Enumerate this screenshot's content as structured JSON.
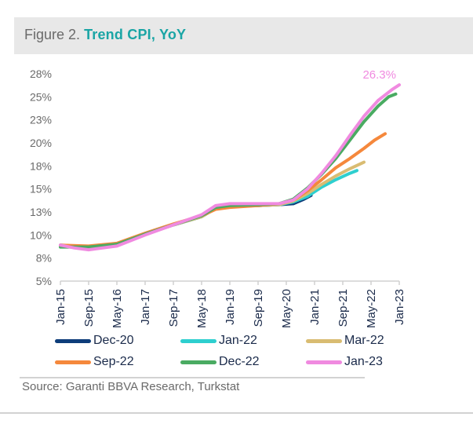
{
  "figure": {
    "prefix": "Figure 2.",
    "title": "Trend CPI, YoY",
    "source": "Source:   Garanti BBVA Research, Turkstat"
  },
  "chart_data": {
    "type": "line",
    "title": "Trend CPI, YoY",
    "xlabel": "",
    "ylabel": "",
    "x_tick_labels": [
      "Jan-15",
      "Sep-15",
      "May-16",
      "Jan-17",
      "Sep-17",
      "May-18",
      "Jan-19",
      "Sep-19",
      "May-20",
      "Jan-21",
      "Sep-21",
      "May-22",
      "Jan-23"
    ],
    "y_tick_labels": [
      "5%",
      "8%",
      "10%",
      "13%",
      "15%",
      "18%",
      "20%",
      "23%",
      "25%",
      "28%"
    ],
    "ylim": [
      5.0,
      27.5
    ],
    "xlim_months": [
      0,
      96
    ],
    "annotation": {
      "text": "26.3%",
      "series": "Jan-23",
      "color": "#f08ae0"
    },
    "legend_position": "bottom",
    "series": [
      {
        "name": "Dec-20",
        "color": "#0e3d7a",
        "end_month": 71,
        "points": [
          [
            0,
            8.9
          ],
          [
            8,
            8.7
          ],
          [
            16,
            9.0
          ],
          [
            24,
            10.1
          ],
          [
            32,
            11.1
          ],
          [
            40,
            12.0
          ],
          [
            44,
            12.9
          ],
          [
            48,
            13.1
          ],
          [
            56,
            13.2
          ],
          [
            62,
            13.3
          ],
          [
            66,
            13.4
          ],
          [
            69,
            13.9
          ],
          [
            71,
            14.3
          ]
        ]
      },
      {
        "name": "Jan-22",
        "color": "#2ecfcf",
        "end_month": 84,
        "points": [
          [
            0,
            8.9
          ],
          [
            8,
            8.7
          ],
          [
            16,
            9.0
          ],
          [
            24,
            10.1
          ],
          [
            32,
            11.1
          ],
          [
            40,
            12.0
          ],
          [
            44,
            12.9
          ],
          [
            48,
            13.1
          ],
          [
            56,
            13.2
          ],
          [
            62,
            13.3
          ],
          [
            66,
            13.6
          ],
          [
            70,
            14.2
          ],
          [
            74,
            15.2
          ],
          [
            78,
            16.0
          ],
          [
            82,
            16.7
          ],
          [
            84,
            17.0
          ]
        ]
      },
      {
        "name": "Mar-22",
        "color": "#d9bc72",
        "end_month": 86,
        "points": [
          [
            0,
            8.9
          ],
          [
            8,
            8.7
          ],
          [
            16,
            9.0
          ],
          [
            24,
            10.1
          ],
          [
            32,
            11.1
          ],
          [
            40,
            12.0
          ],
          [
            44,
            12.9
          ],
          [
            48,
            13.1
          ],
          [
            56,
            13.2
          ],
          [
            62,
            13.3
          ],
          [
            66,
            13.7
          ],
          [
            70,
            14.5
          ],
          [
            74,
            15.5
          ],
          [
            78,
            16.4
          ],
          [
            82,
            17.2
          ],
          [
            86,
            17.9
          ]
        ]
      },
      {
        "name": "Sep-22",
        "color": "#f5883c",
        "end_month": 92,
        "points": [
          [
            0,
            8.9
          ],
          [
            8,
            8.8
          ],
          [
            16,
            9.1
          ],
          [
            24,
            10.2
          ],
          [
            32,
            11.2
          ],
          [
            40,
            12.1
          ],
          [
            44,
            12.8
          ],
          [
            48,
            13.0
          ],
          [
            56,
            13.2
          ],
          [
            62,
            13.4
          ],
          [
            66,
            13.8
          ],
          [
            70,
            14.8
          ],
          [
            74,
            16.0
          ],
          [
            78,
            17.3
          ],
          [
            82,
            18.3
          ],
          [
            86,
            19.4
          ],
          [
            89,
            20.3
          ],
          [
            92,
            21.0
          ]
        ]
      },
      {
        "name": "Dec-22",
        "color": "#4aab62",
        "end_month": 95,
        "points": [
          [
            0,
            8.7
          ],
          [
            8,
            8.7
          ],
          [
            16,
            9.0
          ],
          [
            24,
            10.1
          ],
          [
            32,
            11.1
          ],
          [
            40,
            12.1
          ],
          [
            44,
            13.0
          ],
          [
            48,
            13.2
          ],
          [
            56,
            13.3
          ],
          [
            62,
            13.4
          ],
          [
            66,
            13.9
          ],
          [
            70,
            15.1
          ],
          [
            74,
            16.6
          ],
          [
            78,
            18.3
          ],
          [
            82,
            20.3
          ],
          [
            86,
            22.3
          ],
          [
            90,
            24.0
          ],
          [
            93,
            25.0
          ],
          [
            95,
            25.3
          ]
        ]
      },
      {
        "name": "Jan-23",
        "color": "#f08ae0",
        "end_month": 96,
        "points": [
          [
            0,
            8.9
          ],
          [
            4,
            8.6
          ],
          [
            8,
            8.4
          ],
          [
            16,
            8.8
          ],
          [
            24,
            10.0
          ],
          [
            32,
            11.1
          ],
          [
            40,
            12.2
          ],
          [
            44,
            13.2
          ],
          [
            48,
            13.4
          ],
          [
            56,
            13.4
          ],
          [
            62,
            13.4
          ],
          [
            66,
            13.8
          ],
          [
            70,
            15.0
          ],
          [
            74,
            16.7
          ],
          [
            78,
            18.6
          ],
          [
            82,
            20.8
          ],
          [
            86,
            22.9
          ],
          [
            90,
            24.6
          ],
          [
            94,
            25.8
          ],
          [
            96,
            26.3
          ]
        ]
      }
    ]
  }
}
